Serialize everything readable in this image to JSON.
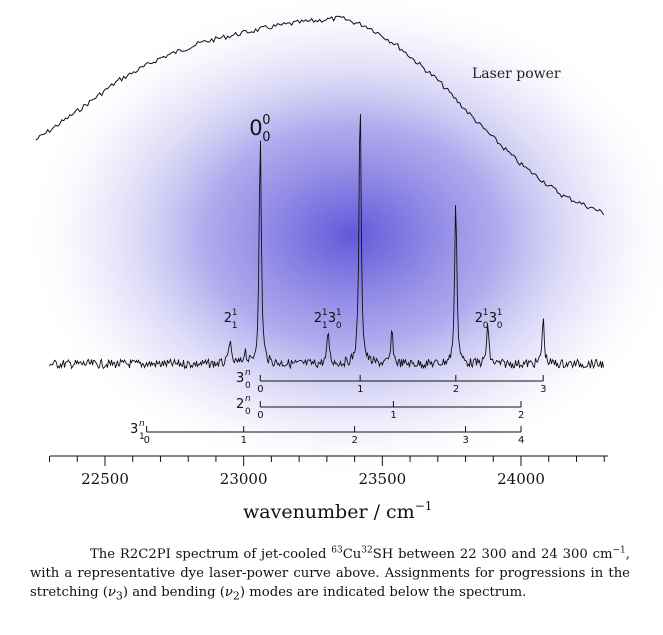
{
  "chart_data": {
    "type": "line",
    "xlabel": "wavenumber / cm",
    "xlabel_exponent": "−1",
    "xlim": [
      22300,
      24300
    ],
    "x_ticks": [
      22500,
      23000,
      23500,
      24000
    ],
    "x_tick_labels": [
      "22500",
      "23000",
      "23500",
      "24000"
    ],
    "series": [
      {
        "name": "Laser power",
        "x": [
          22250,
          22400,
          22550,
          22700,
          22850,
          22950,
          23100,
          23200,
          23350,
          23450,
          23550,
          23700,
          23850,
          24000,
          24150,
          24300
        ],
        "y": [
          0.45,
          0.58,
          0.72,
          0.82,
          0.89,
          0.92,
          0.96,
          0.98,
          1.0,
          0.96,
          0.88,
          0.72,
          0.52,
          0.34,
          0.2,
          0.12
        ]
      },
      {
        "name": "",
        "peaks": [
          {
            "x": 22950,
            "height": 0.09
          },
          {
            "x": 23005,
            "height": 0.05
          },
          {
            "x": 23060,
            "height": 0.86
          },
          {
            "x": 23305,
            "height": 0.12
          },
          {
            "x": 23420,
            "height": 1.0
          },
          {
            "x": 23535,
            "height": 0.12
          },
          {
            "x": 23765,
            "height": 0.63
          },
          {
            "x": 23880,
            "height": 0.15
          },
          {
            "x": 24080,
            "height": 0.17
          }
        ]
      }
    ],
    "peak_labels": [
      {
        "x": 23060,
        "main": "0",
        "sup": "0",
        "sub": "0",
        "large": true
      },
      {
        "x": 22950,
        "main": "2",
        "sup": "1",
        "sub": "1"
      },
      {
        "x": 23300,
        "main": "2",
        "sup": "1",
        "sub": "1",
        "main2": "3",
        "sup2": "1",
        "sub2": "0"
      },
      {
        "x": 23880,
        "main": "2",
        "sup": "1",
        "sub": "0",
        "main2": "3",
        "sup2": "1",
        "sub2": "0"
      }
    ],
    "progressions": [
      {
        "main": "3",
        "sup": "n",
        "sub": "0",
        "x": [
          23060,
          23420,
          23765,
          24080
        ],
        "labels": [
          "0",
          "1",
          "2",
          "3"
        ]
      },
      {
        "main": "2",
        "sup": "n",
        "sub": "0",
        "x": [
          23060,
          23540,
          24000
        ],
        "labels": [
          "0",
          "1",
          "2"
        ]
      },
      {
        "main": "3",
        "sup": "n",
        "sub": "1",
        "x": [
          22650,
          23000,
          23400,
          23800,
          24000
        ],
        "labels": [
          "0",
          "1",
          "2",
          "3",
          "4"
        ]
      }
    ],
    "annotation": "Laser power"
  },
  "caption": {
    "p1": "The R2C2PI spectrum of jet-cooled ",
    "iso1": "63",
    "p2": "Cu",
    "iso2": "32",
    "p3": "SH between 22 300 and 24 300 cm",
    "exp": "−1",
    "p4": ", with a representative dye laser-power curve above. Assignments for progressions in the stretching (",
    "v3": "ν",
    "v3sub": "3",
    "p5": ") and bending (",
    "v2": "ν",
    "v2sub": "2",
    "p6": ") modes are indicated below the spectrum."
  }
}
